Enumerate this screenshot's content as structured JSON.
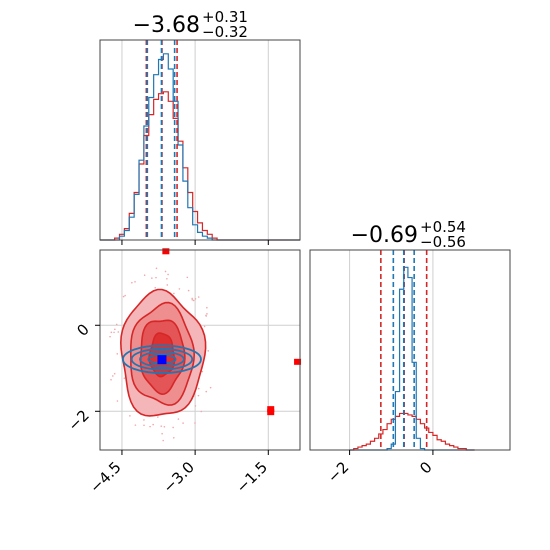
{
  "chart_data": {
    "type": "corner",
    "colors": {
      "posterior_a": "#d62728",
      "posterior_b": "#1f77b4",
      "truth_marker": "#0000ff",
      "outlier_marker": "#ff0000"
    },
    "params": [
      {
        "title": {
          "main": "−3.68",
          "sup": "+0.31",
          "sub": "−0.32"
        }
      },
      {
        "title": {
          "main": "−0.69",
          "sup": "+0.54",
          "sub": "−0.56"
        }
      }
    ],
    "axes": {
      "x0": {
        "range": [
          -4.95,
          -0.85
        ],
        "ticks": [
          -4.5,
          -3.0,
          -1.5
        ],
        "tick_labels": [
          "−4.5",
          "−3.0",
          "−1.5"
        ],
        "grid": [
          -4.5,
          -3.0,
          -1.5
        ]
      },
      "y1": {
        "range": [
          -2.9,
          1.75
        ],
        "ticks": [
          0,
          -2
        ],
        "tick_labels": [
          "0",
          "−2"
        ],
        "grid": [
          0,
          -2
        ]
      },
      "x1": {
        "range": [
          -2.95,
          1.85
        ],
        "ticks": [
          -2,
          0
        ],
        "tick_labels": [
          "−2",
          "0"
        ],
        "grid": [
          -2,
          0
        ]
      }
    },
    "hist0": {
      "quantile_lines_a": [
        -4.0,
        -3.68,
        -3.37
      ],
      "quantile_lines_b": [
        -3.98,
        -3.69,
        -3.42
      ],
      "edges": [
        -4.95,
        -4.85,
        -4.75,
        -4.65,
        -4.55,
        -4.45,
        -4.35,
        -4.25,
        -4.15,
        -4.05,
        -3.95,
        -3.85,
        -3.75,
        -3.65,
        -3.55,
        -3.45,
        -3.35,
        -3.25,
        -3.15,
        -3.05,
        -2.95,
        -2.85,
        -2.75,
        -2.65,
        -2.55,
        -2.45,
        -2.35,
        -0.85
      ],
      "series_a": [
        0,
        0,
        0,
        1,
        3,
        6,
        14,
        25,
        40,
        55,
        66,
        74,
        77,
        78,
        73,
        64,
        52,
        38,
        25,
        15,
        9,
        5,
        3,
        1,
        0,
        0,
        0
      ],
      "series_b": [
        0,
        0,
        0,
        0,
        2,
        5,
        12,
        24,
        42,
        60,
        75,
        87,
        95,
        98,
        90,
        73,
        50,
        31,
        17,
        8,
        4,
        2,
        1,
        0,
        0,
        0,
        0
      ],
      "ymax": 100
    },
    "hist1": {
      "quantile_lines_a": [
        -1.25,
        -0.69,
        -0.15
      ],
      "quantile_lines_b": [
        -0.95,
        -0.7,
        -0.45
      ],
      "edges": [
        -2.0,
        -1.9,
        -1.8,
        -1.7,
        -1.6,
        -1.5,
        -1.4,
        -1.3,
        -1.2,
        -1.1,
        -1.0,
        -0.9,
        -0.8,
        -0.7,
        -0.6,
        -0.5,
        -0.4,
        -0.3,
        -0.2,
        -0.1,
        0.0,
        0.1,
        0.2,
        0.3,
        0.4,
        0.5,
        0.6,
        0.7,
        0.8,
        0.9,
        1.0
      ],
      "series_a": [
        0,
        1,
        2,
        3,
        4,
        6,
        8,
        11,
        14,
        18,
        21,
        23,
        25,
        25,
        24,
        23,
        21,
        18,
        15,
        12,
        10,
        7,
        6,
        4,
        3,
        2,
        1,
        1,
        0,
        0
      ],
      "series_b": [
        0,
        0,
        0,
        0,
        0,
        0,
        0,
        0,
        0,
        1,
        4,
        40,
        110,
        125,
        118,
        60,
        8,
        1,
        0,
        0,
        0,
        0,
        0,
        0,
        0,
        0,
        0,
        0,
        0,
        0
      ],
      "ymax": 130
    },
    "density": {
      "center": [
        -3.68,
        -0.69
      ],
      "contours_a": [
        {
          "rx": 0.85,
          "ry": 1.45,
          "fill": "#f4b6b8"
        },
        {
          "rx": 0.65,
          "ry": 1.15,
          "fill": "#ee8e8f"
        },
        {
          "rx": 0.45,
          "ry": 0.85,
          "fill": "#e35556"
        },
        {
          "rx": 0.25,
          "ry": 0.5,
          "fill": "#dd3031"
        }
      ],
      "contours_b": [
        {
          "rx": 0.8,
          "ry": 0.32
        },
        {
          "rx": 0.62,
          "ry": 0.24
        },
        {
          "rx": 0.45,
          "ry": 0.17
        },
        {
          "rx": 0.28,
          "ry": 0.1
        }
      ],
      "truth_point": [
        -3.68,
        -0.8
      ],
      "outlier_points": [
        [
          -3.6,
          1.72
        ],
        [
          -1.45,
          -1.95
        ],
        [
          -1.45,
          -2.02
        ],
        [
          -0.9,
          -0.85
        ]
      ]
    }
  }
}
